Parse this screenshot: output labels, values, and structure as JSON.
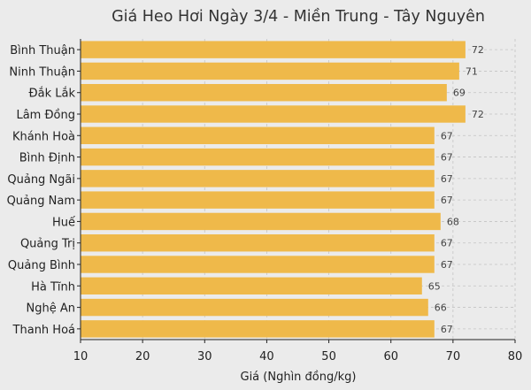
{
  "chart_data": {
    "type": "bar",
    "orientation": "horizontal",
    "title": "Giá Heo Hơi Ngày 3/4 - Miền Trung - Tây Nguyên",
    "xlabel": "Giá (Nghìn đồng/kg)",
    "ylabel": "",
    "xlim": [
      10,
      80
    ],
    "x_ticks": [
      10,
      20,
      30,
      40,
      50,
      60,
      70,
      80
    ],
    "grid": true,
    "categories": [
      "Bình Thuận",
      "Ninh Thuận",
      "Đắk Lắk",
      "Lâm Đồng",
      "Khánh Hoà",
      "Bình Định",
      "Quảng Ngãi",
      "Quảng Nam",
      "Huế",
      "Quảng Trị",
      "Quảng Bình",
      "Hà Tĩnh",
      "Nghệ An",
      "Thanh Hoá"
    ],
    "values": [
      72,
      71,
      69,
      72,
      67,
      67,
      67,
      67,
      68,
      67,
      67,
      65,
      66,
      67
    ],
    "data_labels": [
      "72",
      "71",
      "69",
      "72",
      "67",
      "67",
      "67",
      "67",
      "68",
      "67",
      "67",
      "65",
      "66",
      "67"
    ],
    "bar_color": "#efb94a",
    "background_color": "#ebebeb",
    "grid_color": "#c4c4c4"
  }
}
